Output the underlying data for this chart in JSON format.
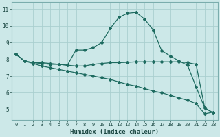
{
  "xlabel": "Humidex (Indice chaleur)",
  "bg_color": "#cce8e8",
  "grid_color": "#aacfcf",
  "line_color": "#1e6b60",
  "x_ticks": [
    0,
    1,
    2,
    3,
    4,
    5,
    6,
    7,
    8,
    9,
    10,
    11,
    12,
    13,
    14,
    15,
    16,
    17,
    18,
    19,
    20,
    21,
    22,
    23
  ],
  "y_ticks": [
    5,
    6,
    7,
    8,
    9,
    10,
    11
  ],
  "ylim": [
    4.4,
    11.4
  ],
  "xlim": [
    -0.5,
    23.5
  ],
  "line1_x": [
    0,
    1,
    2,
    3,
    4,
    5,
    6,
    7,
    8,
    9,
    10,
    11,
    12,
    13,
    14,
    15,
    16,
    17,
    18,
    19,
    20,
    21,
    22,
    23
  ],
  "line1_y": [
    8.3,
    7.9,
    7.8,
    7.8,
    7.75,
    7.7,
    7.65,
    8.55,
    8.55,
    8.7,
    9.0,
    9.85,
    10.5,
    10.75,
    10.8,
    10.4,
    9.75,
    8.5,
    8.2,
    7.9,
    7.65,
    6.35,
    5.1,
    4.8
  ],
  "line2_x": [
    0,
    1,
    2,
    3,
    4,
    5,
    6,
    7,
    8,
    9,
    10,
    11,
    12,
    13,
    14,
    15,
    16,
    17,
    18,
    19,
    20,
    21,
    22,
    23
  ],
  "line2_y": [
    8.3,
    7.9,
    7.8,
    7.75,
    7.7,
    7.7,
    7.65,
    7.6,
    7.6,
    7.7,
    7.75,
    7.8,
    7.8,
    7.82,
    7.85,
    7.85,
    7.85,
    7.85,
    7.85,
    7.85,
    7.8,
    7.7,
    5.1,
    4.8
  ],
  "line3_x": [
    0,
    1,
    2,
    3,
    4,
    5,
    6,
    7,
    8,
    9,
    10,
    11,
    12,
    13,
    14,
    15,
    16,
    17,
    18,
    19,
    20,
    21,
    22,
    23
  ],
  "line3_y": [
    8.3,
    7.9,
    7.75,
    7.6,
    7.5,
    7.4,
    7.3,
    7.2,
    7.1,
    7.0,
    6.9,
    6.8,
    6.65,
    6.5,
    6.4,
    6.25,
    6.1,
    6.0,
    5.85,
    5.7,
    5.55,
    5.35,
    4.75,
    4.85
  ],
  "tick_fontsize": 5.0,
  "xlabel_fontsize": 6.5,
  "marker_size": 2.0,
  "line_width": 0.9
}
